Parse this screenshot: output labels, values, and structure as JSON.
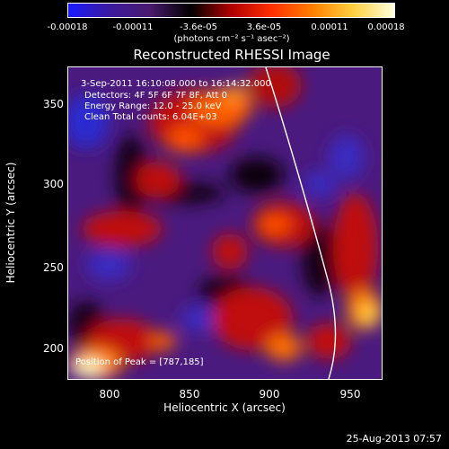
{
  "colorbar": {
    "colors": [
      "#1a1aff",
      "#3b1aa0",
      "#4a1a6e",
      "#000000",
      "#b00000",
      "#ff3000",
      "#ff8000",
      "#ffd040",
      "#ffffe0"
    ],
    "ticks": [
      "-0.00018",
      "-0.00011",
      "-3.6e-05",
      "3.6e-05",
      "0.00011",
      "0.00018"
    ],
    "unit": "(photons cm⁻² s⁻¹ asec⁻²)"
  },
  "title": "Reconstructed RHESSI Image",
  "annotations": {
    "time_range": "3-Sep-2011 16:10:08.000 to 16:14:32.000",
    "detectors": "Detectors: 4F 5F 6F 7F 8F, Att 0",
    "energy_range": "Energy Range: 12.0 - 25.0 keV",
    "method": "Clean     Total counts: 6.04E+03",
    "peak": "Position of Peak = [787,185]"
  },
  "axes": {
    "xlabel": "Heliocentric X (arcsec)",
    "ylabel": "Heliocentric Y (arcsec)",
    "xticks": [
      "800",
      "850",
      "900",
      "950"
    ],
    "yticks": [
      "350",
      "300",
      "250",
      "200"
    ]
  },
  "timestamp": "25-Aug-2013 07:57"
}
